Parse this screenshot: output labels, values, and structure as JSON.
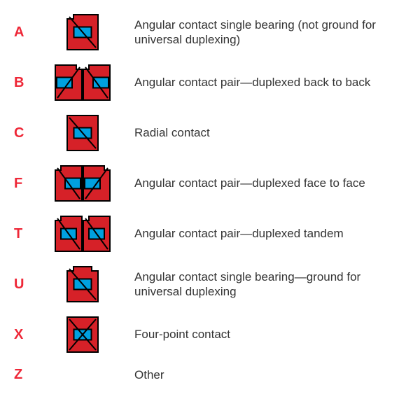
{
  "font_family": "Segoe UI, Helvetica Neue, Arial, sans-serif",
  "code_color": "#ee2737",
  "code_fontsize": 20,
  "code_fontweight": 700,
  "desc_color": "#333333",
  "desc_fontsize": 17,
  "background_color": "#ffffff",
  "bearing_colors": {
    "outer_fill": "#d62128",
    "inner_fill": "#00a1e0",
    "stroke": "#000000",
    "stroke_width": 2
  },
  "rows": [
    {
      "code": "A",
      "icon": "A",
      "desc": "Angular contact single bearing (not ground for universal duplexing)"
    },
    {
      "code": "B",
      "icon": "B",
      "desc": "Angular contact pair—duplexed back to back"
    },
    {
      "code": "C",
      "icon": "C",
      "desc": "Radial contact"
    },
    {
      "code": "F",
      "icon": "F",
      "desc": "Angular contact pair—duplexed face to face"
    },
    {
      "code": "T",
      "icon": "T",
      "desc": "Angular contact pair—duplexed tandem"
    },
    {
      "code": "U",
      "icon": "U",
      "desc": "Angular contact single bearing—ground for universal duplexing"
    },
    {
      "code": "X",
      "icon": "X",
      "desc": "Four-point contact"
    },
    {
      "code": "Z",
      "icon": null,
      "desc": "Other"
    }
  ]
}
